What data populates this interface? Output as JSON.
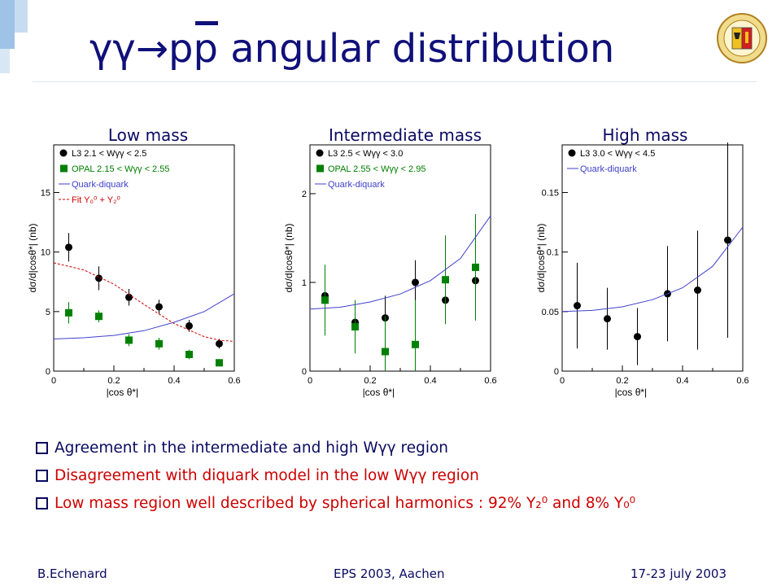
{
  "slide": {
    "title_prefix": "γγ→",
    "title_pp": "pp",
    "title_rest": " angular distribution",
    "panel_labels": [
      "Low mass",
      "Intermediate mass",
      "High mass"
    ],
    "bullets": [
      "Agreement in the intermediate and high Wγγ region",
      "Disagreement with diquark model in the low Wγγ region",
      "Low mass region well described by spherical harmonics : 92% Y₂⁰ and 8% Y₀⁰"
    ],
    "footer": {
      "left": "B.Echenard",
      "center": "EPS 2003, Aachen",
      "right": "17-23 july 2003"
    },
    "colors": {
      "title": "#10107a",
      "text_blue": "#0a0a60",
      "text_red": "#cc0000",
      "l3": "#000000",
      "opal": "#008000",
      "quark_diquark": "#4040cc",
      "fit": "#cc0000"
    }
  },
  "chart_data": [
    {
      "type": "scatter",
      "xlabel": "|cos θ*|",
      "ylabel": "dσ/d|cosθ*| (nb)",
      "xlim": [
        0,
        0.6
      ],
      "ylim": [
        0,
        19
      ],
      "xticks": [
        "0",
        "0.2",
        "0.4",
        "0.6"
      ],
      "yticks": [
        0,
        5,
        10,
        15
      ],
      "ytick_labels": [
        "0",
        "5",
        "10",
        "15"
      ],
      "legend": [
        "L3   2.1 < Wγγ < 2.5",
        "OPAL   2.15 < Wγγ < 2.55",
        "Quark-diquark",
        "Fit Y₀⁰ + Y₂⁰"
      ],
      "series": [
        {
          "name": "L3",
          "marker": "circle",
          "x": [
            0.05,
            0.15,
            0.25,
            0.35,
            0.45,
            0.55
          ],
          "y": [
            10.4,
            7.8,
            6.2,
            5.4,
            3.8,
            2.3
          ],
          "err": [
            1.2,
            1.0,
            0.7,
            0.6,
            0.5,
            0.4
          ]
        },
        {
          "name": "OPAL",
          "marker": "square",
          "x": [
            0.05,
            0.15,
            0.25,
            0.35,
            0.45,
            0.55
          ],
          "y": [
            4.9,
            4.6,
            2.6,
            2.3,
            1.4,
            0.7
          ],
          "err": [
            0.9,
            0.5,
            0.5,
            0.5,
            0.4,
            0.3
          ]
        },
        {
          "name": "Quark-diquark",
          "line": "solid",
          "x": [
            0,
            0.1,
            0.2,
            0.3,
            0.4,
            0.5,
            0.6
          ],
          "y": [
            2.7,
            2.8,
            3.0,
            3.4,
            4.1,
            5.0,
            6.5
          ]
        },
        {
          "name": "Fit",
          "line": "dashed",
          "x": [
            0,
            0.1,
            0.2,
            0.3,
            0.4,
            0.5,
            0.55,
            0.6
          ],
          "y": [
            9.1,
            8.5,
            7.3,
            5.6,
            4.0,
            2.9,
            2.6,
            2.5
          ]
        }
      ]
    },
    {
      "type": "scatter",
      "xlabel": "|cos θ*|",
      "ylabel": "dσ/d|cosθ*| (nb)",
      "xlim": [
        0,
        0.6
      ],
      "ylim": [
        0,
        2.55
      ],
      "xticks": [
        "0",
        "0.2",
        "0.4",
        "0.6"
      ],
      "yticks": [
        0,
        1,
        2
      ],
      "ytick_labels": [
        "0",
        "1",
        "2"
      ],
      "legend": [
        "L3   2.5 < Wγγ < 3.0",
        "OPAL   2.55 < Wγγ < 2.95",
        "Quark-diquark"
      ],
      "series": [
        {
          "name": "L3",
          "marker": "circle",
          "x": [
            0.05,
            0.15,
            0.25,
            0.35,
            0.45,
            0.55
          ],
          "y": [
            0.85,
            0.55,
            0.6,
            1.0,
            0.8,
            1.02
          ],
          "err": [
            0.25,
            0.2,
            0.25,
            0.25,
            0.25,
            0.35
          ]
        },
        {
          "name": "OPAL",
          "marker": "square",
          "x": [
            0.05,
            0.15,
            0.25,
            0.35,
            0.45,
            0.55
          ],
          "y": [
            0.8,
            0.5,
            0.22,
            0.3,
            1.03,
            1.17
          ],
          "err": [
            0.4,
            0.3,
            0.4,
            0.5,
            0.5,
            0.6
          ]
        },
        {
          "name": "Quark-diquark",
          "line": "solid",
          "x": [
            0,
            0.1,
            0.2,
            0.3,
            0.4,
            0.5,
            0.6
          ],
          "y": [
            0.7,
            0.72,
            0.78,
            0.87,
            1.02,
            1.27,
            1.75
          ]
        }
      ]
    },
    {
      "type": "scatter",
      "xlabel": "|cos θ*|",
      "ylabel": "dσ/d|cosθ*| (nb)",
      "xlim": [
        0,
        0.6
      ],
      "ylim": [
        0,
        0.19
      ],
      "xticks": [
        "0",
        "0.2",
        "0.4",
        "0.6"
      ],
      "yticks": [
        0,
        0.05,
        0.1,
        0.15
      ],
      "ytick_labels": [
        "0",
        "0.05",
        "0.1",
        "0.15"
      ],
      "legend": [
        "L3   3.0 < Wγγ < 4.5",
        "Quark-diquark"
      ],
      "series": [
        {
          "name": "L3",
          "marker": "circle",
          "x": [
            0.05,
            0.15,
            0.25,
            0.35,
            0.45,
            0.55
          ],
          "y": [
            0.055,
            0.044,
            0.029,
            0.065,
            0.068,
            0.11
          ],
          "err": [
            0.036,
            0.026,
            0.024,
            0.04,
            0.05,
            0.082
          ]
        },
        {
          "name": "Quark-diquark",
          "line": "solid",
          "x": [
            0,
            0.1,
            0.2,
            0.3,
            0.4,
            0.5,
            0.6
          ],
          "y": [
            0.05,
            0.051,
            0.054,
            0.06,
            0.07,
            0.088,
            0.121
          ]
        }
      ]
    }
  ]
}
